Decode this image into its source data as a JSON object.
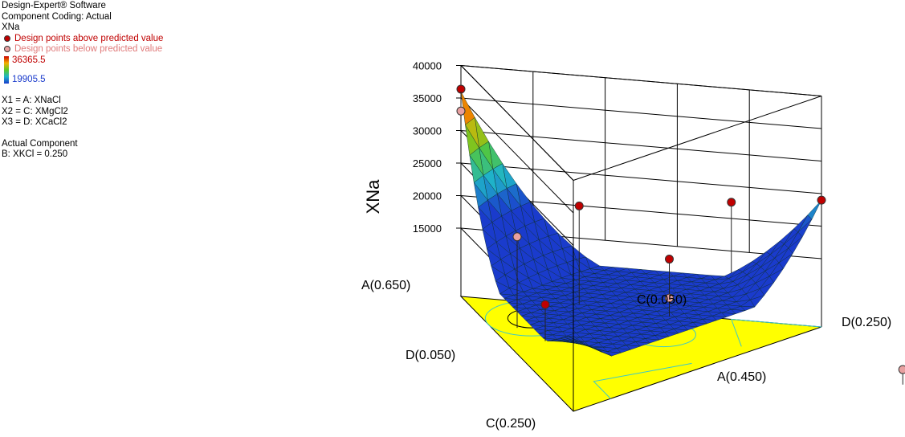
{
  "legend": {
    "software": "Design-Expert® Software",
    "coding": "Component Coding: Actual",
    "response": "XNa",
    "above": "Design points above predicted value",
    "below": "Design points below predicted value",
    "color_high": "36365.5",
    "color_low": "19905.5",
    "x1": "X1 = A: XNaCl",
    "x2": "X2 = C: XMgCl2",
    "x3": "X3 = D: XCaCl2",
    "actual_component": "Actual Component",
    "fixed": "B: XKCl = 0.250"
  },
  "colors": {
    "above_point": "#c00000",
    "below_point": "#e8a0a0",
    "floor": "#ffff00",
    "contour": "#3cc8c8"
  },
  "chart_data": {
    "type": "3d-surface",
    "zlabel": "XNa",
    "zticks": [
      "40000",
      "35000",
      "30000",
      "25000",
      "20000",
      "15000"
    ],
    "vertex_labels": {
      "a_top": "A(0.650)",
      "c_back": "C(0.050)",
      "d_right": "D(0.250)",
      "d_left": "D(0.050)",
      "a_right": "A(0.450)",
      "c_bottom": "C(0.250)"
    },
    "vertices": {
      "A": {
        "A": 0.65,
        "C": 0.05,
        "D": 0.05
      },
      "C": {
        "A": 0.45,
        "C": 0.25,
        "D": 0.05
      },
      "D": {
        "A": 0.45,
        "C": 0.05,
        "D": 0.25
      }
    },
    "zlim": [
      15000,
      40000
    ],
    "color_range": [
      19905.5,
      36365.5
    ],
    "design_points": [
      {
        "A": 0.65,
        "C": 0.05,
        "D": 0.05,
        "xna": 36365.5,
        "type": "above"
      },
      {
        "A": 0.65,
        "C": 0.05,
        "D": 0.05,
        "xna": 33000,
        "type": "below"
      },
      {
        "A": 0.55,
        "C": 0.1,
        "D": 0.1,
        "xna": 24000,
        "type": "above"
      },
      {
        "A": 0.55,
        "C": 0.15,
        "D": 0.05,
        "xna": 22500,
        "type": "below"
      },
      {
        "A": 0.5,
        "C": 0.2,
        "D": 0.05,
        "xna": 16500,
        "type": "above"
      },
      {
        "A": 0.5,
        "C": 0.05,
        "D": 0.2,
        "xna": 22500,
        "type": "above"
      },
      {
        "A": 0.45,
        "C": 0.05,
        "D": 0.25,
        "xna": 24000,
        "type": "above"
      },
      {
        "A": 0.5,
        "C": 0.1,
        "D": 0.15,
        "xna": 17000,
        "type": "above"
      },
      {
        "A": 0.5,
        "C": 0.1,
        "D": 0.15,
        "xna": 11000,
        "type": "below"
      },
      {
        "A": 0.45,
        "C": 0.15,
        "D": 0.2,
        "xna": 17000,
        "type": "below"
      }
    ]
  }
}
